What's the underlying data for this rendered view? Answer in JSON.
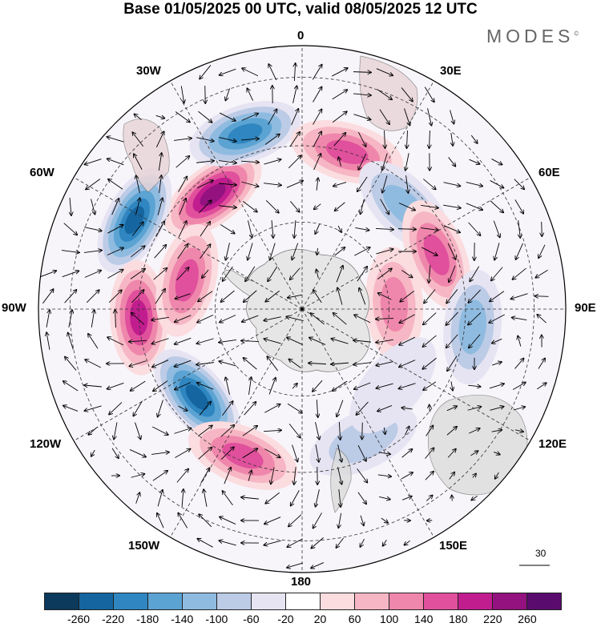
{
  "title": "Base 01/05/2025 00 UTC, valid 08/05/2025 12 UTC",
  "brand": "MODES",
  "brand_mark": "©",
  "longitude_labels": {
    "lon_0": "0",
    "lon_30e": "30E",
    "lon_60e": "60E",
    "lon_90e": "90E",
    "lon_120e": "120E",
    "lon_150e": "150E",
    "lon_180": "180",
    "lon_150w": "150W",
    "lon_120w": "120W",
    "lon_90w": "90W",
    "lon_60w": "60W",
    "lon_30w": "30W"
  },
  "reference_vector": {
    "label": "30"
  },
  "colorbar": {
    "colors": [
      "#0b3a5c",
      "#1565a0",
      "#2f86c0",
      "#5ba3d2",
      "#8fbbe0",
      "#bccbe6",
      "#e6e4f2",
      "#ffffff",
      "#fbdcdf",
      "#f6b6c3",
      "#ef86ab",
      "#e0509c",
      "#c21d8f",
      "#93127f",
      "#5a0b6e"
    ],
    "ticks": [
      "-260",
      "-220",
      "-180",
      "-140",
      "-100",
      "-60",
      "-20",
      "20",
      "60",
      "100",
      "140",
      "180",
      "220",
      "260"
    ]
  },
  "map": {
    "projection": "south polar stereographic",
    "land_color": "#d9d9d9",
    "anomaly_centers": [
      {
        "lon_deg": -38,
        "lat_rel": 0.55,
        "value": 240
      },
      {
        "lon_deg": -18,
        "lat_rel": 0.7,
        "value": -200
      },
      {
        "lon_deg": -62,
        "lat_rel": 0.72,
        "value": -240
      },
      {
        "lon_deg": 16,
        "lat_rel": 0.62,
        "value": 160
      },
      {
        "lon_deg": 45,
        "lat_rel": 0.55,
        "value": -120
      },
      {
        "lon_deg": 68,
        "lat_rel": 0.55,
        "value": 140
      },
      {
        "lon_deg": 87,
        "lat_rel": 0.35,
        "value": 120
      },
      {
        "lon_deg": 96,
        "lat_rel": 0.65,
        "value": -120
      },
      {
        "lon_deg": -93,
        "lat_rel": 0.62,
        "value": 180
      },
      {
        "lon_deg": -76,
        "lat_rel": 0.45,
        "value": 140
      },
      {
        "lon_deg": -130,
        "lat_rel": 0.52,
        "value": -240
      },
      {
        "lon_deg": -158,
        "lat_rel": 0.6,
        "value": 160
      },
      {
        "lon_deg": 155,
        "lat_rel": 0.55,
        "value": -60
      },
      {
        "lon_deg": 130,
        "lat_rel": 0.45,
        "value": -50
      }
    ]
  }
}
